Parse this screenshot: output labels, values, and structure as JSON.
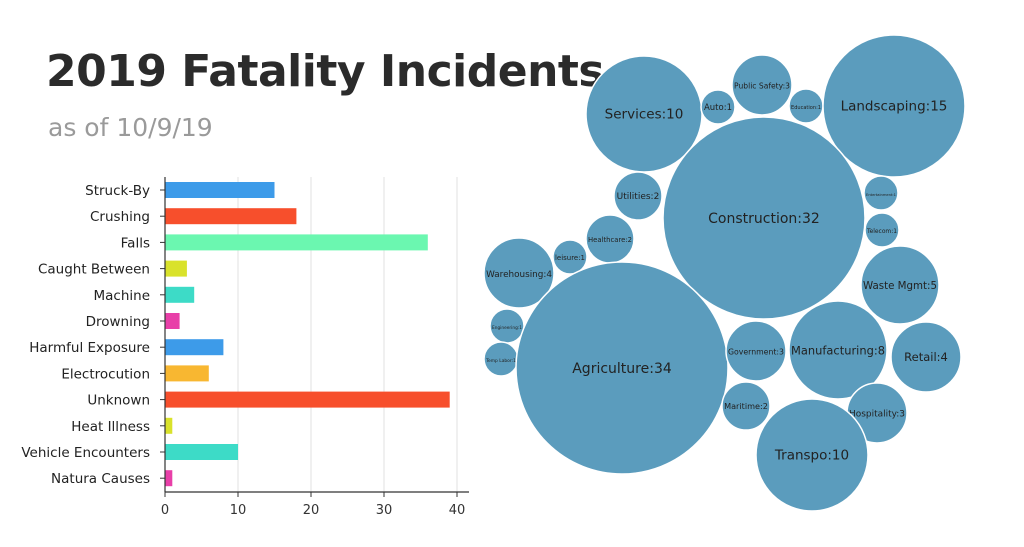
{
  "title": "2019 Fatality Incidents",
  "subtitle": "as of 10/9/19",
  "chart_data": [
    {
      "type": "bar",
      "orientation": "horizontal",
      "categories": [
        "Struck-By",
        "Crushing",
        "Falls",
        "Caught Between",
        "Machine",
        "Drowning",
        "Harmful Exposure",
        "Electrocution",
        "Unknown",
        "Heat Illness",
        "Vehicle Encounters",
        "Natura Causes"
      ],
      "values": [
        15,
        18,
        36,
        3,
        4,
        2,
        8,
        6,
        39,
        1,
        10,
        1
      ],
      "colors": [
        "#3d9be9",
        "#f74f2c",
        "#6bf7b0",
        "#d9e22b",
        "#3ddbc7",
        "#e83fa8",
        "#3d9be9",
        "#f8b731",
        "#f74f2c",
        "#d9e22b",
        "#3ddbc7",
        "#e83fa8"
      ],
      "xticks": [
        0,
        10,
        20,
        30,
        40
      ],
      "xlim": [
        0,
        42
      ],
      "grid": true
    },
    {
      "type": "bubble",
      "color": "#5b9cbd",
      "bubbles": [
        {
          "label": "Services:10",
          "name": "Services",
          "value": 10
        },
        {
          "label": "Auto:1",
          "name": "Auto",
          "value": 1
        },
        {
          "label": "Public Safety:3",
          "name": "Public Safety",
          "value": 3
        },
        {
          "label": "Education:1",
          "name": "Education",
          "value": 1
        },
        {
          "label": "Landscaping:15",
          "name": "Landscaping",
          "value": 15
        },
        {
          "label": "Utilities:2",
          "name": "Utilities",
          "value": 2
        },
        {
          "label": "Construction:32",
          "name": "Construction",
          "value": 32
        },
        {
          "label": "Entertainment:1",
          "name": "Entertainment",
          "value": 1
        },
        {
          "label": "Telecom:1",
          "name": "Telecom",
          "value": 1
        },
        {
          "label": "Healthcare:2",
          "name": "Healthcare",
          "value": 2
        },
        {
          "label": "leisure:1",
          "name": "leisure",
          "value": 1
        },
        {
          "label": "Warehousing:4",
          "name": "Warehousing",
          "value": 4
        },
        {
          "label": "Waste Mgmt:5",
          "name": "Waste Mgmt",
          "value": 5
        },
        {
          "label": "Engineering:1",
          "name": "Engineering",
          "value": 1
        },
        {
          "label": "Temp Labor:1",
          "name": "Temp Labor",
          "value": 1
        },
        {
          "label": "Agriculture:34",
          "name": "Agriculture",
          "value": 34
        },
        {
          "label": "Government:3",
          "name": "Government",
          "value": 3
        },
        {
          "label": "Manufacturing:8",
          "name": "Manufacturing",
          "value": 8
        },
        {
          "label": "Retail:4",
          "name": "Retail",
          "value": 4
        },
        {
          "label": "Maritime:2",
          "name": "Maritime",
          "value": 2
        },
        {
          "label": "Hospitality:3",
          "name": "Hospitality",
          "value": 3
        },
        {
          "label": "Transpo:10",
          "name": "Transpo",
          "value": 10
        }
      ]
    }
  ]
}
